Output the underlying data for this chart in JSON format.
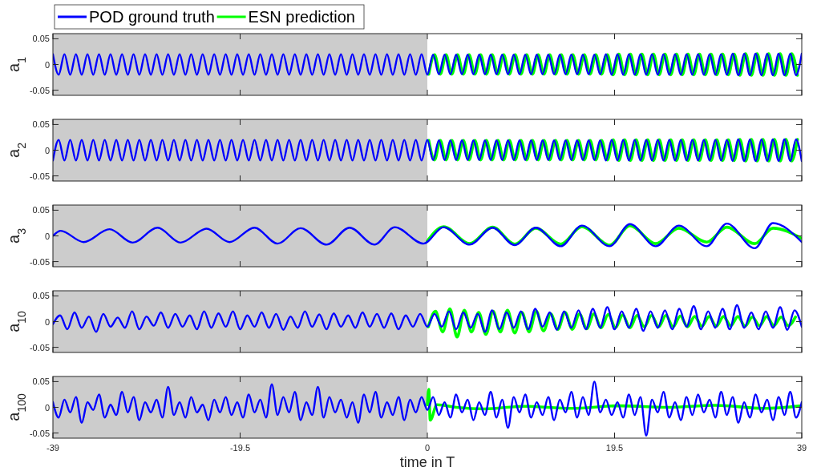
{
  "chart_data": [
    {
      "type": "line",
      "ylabel": "a$_{1}$",
      "xlim": [
        -39,
        39
      ],
      "xticks": [
        -39,
        -19.5,
        0,
        19.5,
        39
      ],
      "ylim": [
        -0.06,
        0.06
      ],
      "yticks": [
        -0.05,
        0,
        0.05
      ],
      "tick_labels": "y",
      "legend": "top left",
      "line_style": "solid",
      "grid": false,
      "bands": [
        {
          "axis": "x",
          "from": -39,
          "to": 0,
          "color": "#cccccc"
        }
      ],
      "x": [
        -39,
        -38.4,
        -37.8,
        -37.2,
        -36.6,
        -36,
        -35.4,
        -34.8,
        -34.2,
        -33.6,
        -33,
        -32.4,
        -31.8,
        -31.2,
        -30.6,
        -30,
        -29.4,
        -28.8,
        -28.2,
        -27.6,
        -27,
        -26.4,
        -25.8,
        -25.2,
        -24.6,
        -24,
        -23.4,
        -22.8,
        -22.2,
        -21.6,
        -21,
        -20.4,
        -19.8,
        -19.2,
        -18.6,
        -18,
        -17.4,
        -16.8,
        -16.2,
        -15.6,
        -15,
        -14.4,
        -13.8,
        -13.2,
        -12.6,
        -12,
        -11.4,
        -10.8,
        -10.2,
        -9.6,
        -9,
        -8.4,
        -7.8,
        -7.2,
        -6.6,
        -6,
        -5.4,
        -4.8,
        -4.2,
        -3.6,
        -3,
        -2.4,
        -1.8,
        -1.2,
        -0.6,
        0,
        0.6,
        1.2,
        1.8,
        2.4,
        3,
        3.6,
        4.2,
        4.8,
        5.4,
        6,
        6.6,
        7.2,
        7.8,
        8.4,
        9,
        9.6,
        10.2,
        10.8,
        11.4,
        12,
        12.6,
        13.2,
        13.8,
        14.4,
        15,
        15.6,
        16.2,
        16.8,
        17.4,
        18,
        18.6,
        19.2,
        19.8,
        20.4,
        21,
        21.6,
        22.2,
        22.8,
        23.4,
        24,
        24.6,
        25.2,
        25.8,
        26.4,
        27,
        27.6,
        28.2,
        28.8,
        29.4,
        30,
        30.6,
        31.2,
        31.8,
        32.4,
        33,
        33.6,
        34.2,
        34.8,
        35.4,
        36,
        36.6,
        37.2,
        37.8,
        38.4,
        39
      ],
      "series": [
        {
          "name": "POD ground truth",
          "color": "#0000ff",
          "values": [
            0.02,
            -0.02,
            0.02,
            -0.02,
            0.02,
            -0.02,
            0.02,
            -0.02,
            0.02,
            -0.02,
            0.02,
            -0.02,
            0.02,
            -0.02,
            0.02,
            -0.02,
            0.02,
            -0.02,
            0.02,
            -0.02,
            0.02,
            -0.02,
            0.02,
            -0.02,
            0.02,
            -0.02,
            0.02,
            -0.02,
            0.02,
            -0.02,
            0.02,
            -0.02,
            0.02,
            -0.02,
            0.02,
            -0.02,
            0.02,
            -0.02,
            0.02,
            -0.02,
            0.02,
            -0.02,
            0.02,
            -0.02,
            0.02,
            -0.02,
            0.02,
            -0.02,
            0.02,
            -0.02,
            0.02,
            -0.02,
            0.02,
            -0.02,
            0.02,
            -0.02,
            0.02,
            -0.02,
            0.02,
            -0.02,
            0.02,
            -0.02,
            0.02,
            -0.02,
            0.02,
            -0.02,
            0.019,
            -0.019,
            0.019,
            -0.019,
            0.019,
            -0.019,
            0.019,
            -0.019,
            0.019,
            -0.019,
            0.019,
            -0.019,
            0.019,
            -0.019,
            0.019,
            -0.019,
            0.019,
            -0.019,
            0.019,
            -0.019,
            0.019,
            -0.019,
            0.019,
            -0.019,
            0.019,
            -0.019,
            0.019,
            -0.019,
            0.019,
            -0.019,
            0.02,
            -0.02,
            0.02,
            -0.02,
            0.02,
            -0.02,
            0.02,
            -0.02,
            0.02,
            -0.02,
            0.02,
            -0.02,
            0.02,
            -0.02,
            0.02,
            -0.02,
            0.02,
            -0.02,
            0.02,
            -0.02,
            0.02,
            -0.02,
            0.021,
            -0.021,
            0.021,
            -0.021,
            0.021,
            -0.021,
            0.021,
            -0.021,
            0.021,
            -0.021,
            0.021,
            -0.021,
            0.021
          ]
        },
        {
          "name": "ESN prediction",
          "color": "#00ff00",
          "x": [
            0.15,
            0.75,
            1.35,
            1.95,
            2.55,
            3.15,
            3.75,
            4.35,
            4.95,
            5.55,
            6.15,
            6.75,
            7.35,
            7.95,
            8.55,
            9.15,
            9.75,
            10.35,
            10.95,
            11.55,
            12.15,
            12.75,
            13.35,
            13.95,
            14.55,
            15.15,
            15.75,
            16.35,
            16.95,
            17.55,
            18.15,
            18.75,
            19.35,
            19.95,
            20.55,
            21.15,
            21.75,
            22.35,
            22.95,
            23.55,
            24.15,
            24.75,
            25.35,
            25.95,
            26.55,
            27.15,
            27.75,
            28.35,
            28.95,
            29.55,
            30.15,
            30.75,
            31.35,
            31.95,
            32.55,
            33.15,
            33.75,
            34.35,
            34.95,
            35.55,
            36.15,
            36.75,
            37.35,
            37.95,
            38.55
          ],
          "values": [
            -0.019,
            0.019,
            -0.019,
            0.019,
            -0.019,
            0.019,
            -0.019,
            0.019,
            -0.019,
            0.019,
            -0.019,
            0.019,
            -0.019,
            0.019,
            -0.019,
            0.019,
            -0.019,
            0.019,
            -0.019,
            0.019,
            -0.019,
            0.019,
            -0.019,
            0.019,
            -0.019,
            0.019,
            -0.019,
            0.019,
            -0.019,
            0.019,
            -0.019,
            0.019,
            -0.02,
            0.02,
            -0.02,
            0.02,
            -0.02,
            0.02,
            -0.02,
            0.02,
            -0.02,
            0.02,
            -0.02,
            0.02,
            -0.02,
            0.02,
            -0.02,
            0.02,
            -0.02,
            0.02,
            -0.02,
            0.02,
            -0.02,
            0.02,
            -0.021,
            0.021,
            -0.021,
            0.021,
            -0.021,
            0.021,
            -0.021,
            0.021,
            -0.021,
            0.021,
            -0.021
          ]
        }
      ]
    },
    {
      "type": "line",
      "ylabel": "a$_{2}$",
      "xlim": [
        -39,
        39
      ],
      "xticks": [
        -39,
        -19.5,
        0,
        19.5,
        39
      ],
      "ylim": [
        -0.06,
        0.06
      ],
      "yticks": [
        -0.05,
        0,
        0.05
      ],
      "tick_labels": "y",
      "line_style": "solid",
      "grid": false,
      "bands": [
        {
          "axis": "x",
          "from": -39,
          "to": 0,
          "color": "#cccccc"
        }
      ],
      "x": [
        -39,
        -38.4,
        -37.8,
        -37.2,
        -36.6,
        -36,
        -35.4,
        -34.8,
        -34.2,
        -33.6,
        -33,
        -32.4,
        -31.8,
        -31.2,
        -30.6,
        -30,
        -29.4,
        -28.8,
        -28.2,
        -27.6,
        -27,
        -26.4,
        -25.8,
        -25.2,
        -24.6,
        -24,
        -23.4,
        -22.8,
        -22.2,
        -21.6,
        -21,
        -20.4,
        -19.8,
        -19.2,
        -18.6,
        -18,
        -17.4,
        -16.8,
        -16.2,
        -15.6,
        -15,
        -14.4,
        -13.8,
        -13.2,
        -12.6,
        -12,
        -11.4,
        -10.8,
        -10.2,
        -9.6,
        -9,
        -8.4,
        -7.8,
        -7.2,
        -6.6,
        -6,
        -5.4,
        -4.8,
        -4.2,
        -3.6,
        -3,
        -2.4,
        -1.8,
        -1.2,
        -0.6,
        0,
        0.6,
        1.2,
        1.8,
        2.4,
        3,
        3.6,
        4.2,
        4.8,
        5.4,
        6,
        6.6,
        7.2,
        7.8,
        8.4,
        9,
        9.6,
        10.2,
        10.8,
        11.4,
        12,
        12.6,
        13.2,
        13.8,
        14.4,
        15,
        15.6,
        16.2,
        16.8,
        17.4,
        18,
        18.6,
        19.2,
        19.8,
        20.4,
        21,
        21.6,
        22.2,
        22.8,
        23.4,
        24,
        24.6,
        25.2,
        25.8,
        26.4,
        27,
        27.6,
        28.2,
        28.8,
        29.4,
        30,
        30.6,
        31.2,
        31.8,
        32.4,
        33,
        33.6,
        34.2,
        34.8,
        35.4,
        36,
        36.6,
        37.2,
        37.8,
        38.4,
        39
      ],
      "series": [
        {
          "color": "#0000ff",
          "values": [
            -0.02,
            0.02,
            -0.02,
            0.02,
            -0.02,
            0.02,
            -0.02,
            0.02,
            -0.02,
            0.02,
            -0.02,
            0.02,
            -0.02,
            0.02,
            -0.02,
            0.02,
            -0.02,
            0.02,
            -0.02,
            0.02,
            -0.02,
            0.02,
            -0.02,
            0.02,
            -0.02,
            0.02,
            -0.02,
            0.02,
            -0.02,
            0.02,
            -0.02,
            0.02,
            -0.02,
            0.02,
            -0.02,
            0.02,
            -0.02,
            0.02,
            -0.02,
            0.02,
            -0.02,
            0.02,
            -0.02,
            0.02,
            -0.02,
            0.02,
            -0.02,
            0.02,
            -0.02,
            0.02,
            -0.02,
            0.02,
            -0.02,
            0.02,
            -0.02,
            0.02,
            -0.02,
            0.02,
            -0.02,
            0.02,
            -0.02,
            0.02,
            -0.02,
            0.02,
            -0.02,
            0.02,
            -0.019,
            0.019,
            -0.019,
            0.019,
            -0.019,
            0.019,
            -0.019,
            0.019,
            -0.019,
            0.019,
            -0.019,
            0.019,
            -0.019,
            0.019,
            -0.019,
            0.019,
            -0.019,
            0.019,
            -0.019,
            0.019,
            -0.019,
            0.019,
            -0.019,
            0.019,
            -0.019,
            0.019,
            -0.019,
            0.019,
            -0.019,
            0.019,
            -0.02,
            0.02,
            -0.02,
            0.02,
            -0.02,
            0.02,
            -0.02,
            0.02,
            -0.02,
            0.02,
            -0.02,
            0.02,
            -0.02,
            0.02,
            -0.02,
            0.02,
            -0.02,
            0.02,
            -0.02,
            0.02,
            -0.02,
            0.02,
            -0.021,
            0.021,
            -0.021,
            0.021,
            -0.021,
            0.021,
            -0.021,
            0.021,
            -0.021,
            0.021,
            -0.021,
            0.021,
            -0.021
          ]
        },
        {
          "color": "#00ff00",
          "x": [
            0.15,
            0.75,
            1.35,
            1.95,
            2.55,
            3.15,
            3.75,
            4.35,
            4.95,
            5.55,
            6.15,
            6.75,
            7.35,
            7.95,
            8.55,
            9.15,
            9.75,
            10.35,
            10.95,
            11.55,
            12.15,
            12.75,
            13.35,
            13.95,
            14.55,
            15.15,
            15.75,
            16.35,
            16.95,
            17.55,
            18.15,
            18.75,
            19.35,
            19.95,
            20.55,
            21.15,
            21.75,
            22.35,
            22.95,
            23.55,
            24.15,
            24.75,
            25.35,
            25.95,
            26.55,
            27.15,
            27.75,
            28.35,
            28.95,
            29.55,
            30.15,
            30.75,
            31.35,
            31.95,
            32.55,
            33.15,
            33.75,
            34.35,
            34.95,
            35.55,
            36.15,
            36.75,
            37.35,
            37.95,
            38.55
          ],
          "values": [
            0.019,
            -0.019,
            0.019,
            -0.019,
            0.019,
            -0.019,
            0.019,
            -0.019,
            0.019,
            -0.019,
            0.019,
            -0.019,
            0.019,
            -0.019,
            0.019,
            -0.019,
            0.019,
            -0.019,
            0.019,
            -0.019,
            0.019,
            -0.019,
            0.019,
            -0.019,
            0.019,
            -0.019,
            0.019,
            -0.019,
            0.019,
            -0.019,
            0.019,
            -0.019,
            0.02,
            -0.02,
            0.02,
            -0.02,
            0.02,
            -0.02,
            0.02,
            -0.02,
            0.02,
            -0.02,
            0.02,
            -0.02,
            0.02,
            -0.02,
            0.02,
            -0.02,
            0.02,
            -0.02,
            0.02,
            -0.02,
            0.02,
            -0.02,
            0.021,
            -0.021,
            0.021,
            -0.021,
            0.021,
            -0.021,
            0.021,
            -0.021,
            0.021,
            -0.021,
            0.021
          ]
        }
      ]
    },
    {
      "type": "line",
      "ylabel": "a$_{3}$",
      "xlim": [
        -39,
        39
      ],
      "xticks": [
        -39,
        -19.5,
        0,
        19.5,
        39
      ],
      "ylim": [
        -0.06,
        0.06
      ],
      "yticks": [
        -0.05,
        0,
        0.05
      ],
      "tick_labels": "y",
      "line_style": "solid",
      "grid": false,
      "bands": [
        {
          "axis": "x",
          "from": -39,
          "to": 0,
          "color": "#cccccc"
        }
      ],
      "x": [
        -39,
        -38.2,
        -35.8,
        -33.1,
        -30.7,
        -28.1,
        -25.7,
        -23,
        -20.6,
        -18,
        -15.6,
        -13.2,
        -10.5,
        -8.1,
        -5.5,
        -3.4,
        -0.4,
        1.7,
        4.4,
        6.8,
        9.1,
        11.3,
        13.9,
        16.1,
        19,
        21.1,
        23.8,
        26.2,
        29.1,
        31.2,
        34.1,
        36,
        39
      ],
      "series": [
        {
          "color": "#0000ff",
          "values": [
            0,
            0.01,
            -0.012,
            0.013,
            -0.013,
            0.016,
            -0.013,
            0.014,
            -0.012,
            0.016,
            -0.015,
            0.015,
            -0.017,
            0.016,
            -0.017,
            0.017,
            -0.015,
            0.017,
            -0.017,
            0.016,
            -0.018,
            0.016,
            -0.02,
            0.02,
            -0.02,
            0.023,
            -0.02,
            0.02,
            -0.02,
            0.024,
            -0.024,
            0.025,
            -0.012
          ]
        },
        {
          "color": "#00ff00",
          "x": [
            0,
            1.7,
            4.4,
            6.8,
            9.1,
            11.3,
            13.9,
            16.1,
            19,
            21.1,
            23.8,
            26.2,
            29.1,
            31.2,
            34.1,
            36,
            39
          ],
          "values": [
            -0.01,
            0.018,
            -0.015,
            0.017,
            -0.016,
            0.015,
            -0.016,
            0.018,
            -0.018,
            0.02,
            -0.015,
            0.015,
            -0.012,
            0.017,
            -0.015,
            0.015,
            -0.005
          ]
        }
      ]
    },
    {
      "type": "line",
      "ylabel": "a$_{10}$",
      "xlim": [
        -39,
        39
      ],
      "xticks": [
        -39,
        -19.5,
        0,
        19.5,
        39
      ],
      "ylim": [
        -0.06,
        0.06
      ],
      "yticks": [
        -0.05,
        0,
        0.05
      ],
      "tick_labels": "y",
      "line_style": "solid",
      "grid": false,
      "bands": [
        {
          "axis": "x",
          "from": -39,
          "to": 0,
          "color": "#cccccc"
        }
      ],
      "x": [
        -39,
        -38.25,
        -37.5,
        -36.75,
        -36,
        -35.25,
        -34.5,
        -33.75,
        -33,
        -32.25,
        -31.5,
        -30.75,
        -30,
        -29.25,
        -28.5,
        -27.75,
        -27,
        -26.25,
        -25.5,
        -24.75,
        -24,
        -23.25,
        -22.5,
        -21.75,
        -21,
        -20.25,
        -19.5,
        -18.75,
        -18,
        -17.25,
        -16.5,
        -15.75,
        -15,
        -14.25,
        -13.5,
        -12.75,
        -12,
        -11.25,
        -10.5,
        -9.75,
        -9,
        -8.25,
        -7.5,
        -6.75,
        -6,
        -5.25,
        -4.5,
        -3.75,
        -3,
        -2.25,
        -1.5,
        -0.75,
        0,
        0.75,
        1.5,
        2.25,
        3,
        3.75,
        4.5,
        5.25,
        6,
        6.75,
        7.5,
        8.25,
        9,
        9.75,
        10.5,
        11.25,
        12,
        12.75,
        13.5,
        14.25,
        15,
        15.75,
        16.5,
        17.25,
        18,
        18.75,
        19.5,
        20.25,
        21,
        21.75,
        22.5,
        23.25,
        24,
        24.75,
        25.5,
        26.25,
        27,
        27.75,
        28.5,
        29.25,
        30,
        30.75,
        31.5,
        32.25,
        33,
        33.75,
        34.5,
        35.25,
        36,
        36.75,
        37.5,
        38.25,
        39
      ],
      "series": [
        {
          "color": "#0000ff",
          "values": [
            -0.005,
            0.012,
            -0.015,
            0.018,
            -0.012,
            0.01,
            -0.02,
            0.015,
            -0.01,
            0.008,
            -0.012,
            0.02,
            -0.015,
            0.01,
            -0.008,
            0.018,
            -0.012,
            0.015,
            -0.01,
            0.012,
            -0.015,
            0.02,
            -0.012,
            0.016,
            -0.01,
            0.02,
            -0.015,
            0.012,
            -0.01,
            0.018,
            -0.012,
            0.015,
            -0.016,
            0.01,
            -0.012,
            0.02,
            -0.01,
            0.014,
            -0.015,
            0.016,
            -0.01,
            0.012,
            -0.012,
            0.018,
            -0.01,
            0.015,
            -0.012,
            0.016,
            -0.015,
            0.012,
            -0.01,
            0.015,
            -0.01,
            0.015,
            -0.01,
            0.02,
            -0.015,
            0.018,
            -0.012,
            0.015,
            -0.02,
            0.022,
            -0.015,
            0.018,
            -0.012,
            0.02,
            -0.015,
            0.025,
            -0.01,
            0.018,
            -0.016,
            0.02,
            -0.012,
            0.022,
            -0.015,
            0.025,
            -0.012,
            0.028,
            -0.015,
            0.02,
            -0.012,
            0.025,
            -0.018,
            0.02,
            -0.012,
            0.022,
            -0.015,
            0.025,
            -0.01,
            0.03,
            -0.015,
            0.02,
            -0.012,
            0.025,
            -0.015,
            0.032,
            -0.012,
            0.018,
            -0.015,
            0.02,
            -0.012,
            0.028,
            -0.016,
            0.022,
            -0.01
          ]
        },
        {
          "color": "#00ff00",
          "x": [
            0.1,
            0.85,
            1.6,
            2.35,
            3.1,
            3.85,
            4.6,
            5.35,
            6.1,
            6.85,
            7.6,
            8.35,
            9.1,
            9.85,
            10.6,
            11.35,
            12.1,
            12.85,
            13.6,
            14.35,
            15.1,
            15.85,
            16.6,
            17.35,
            18.1,
            18.85,
            19.6,
            20.35,
            21.1,
            21.85,
            22.6,
            23.35,
            24.1,
            24.85,
            25.6,
            26.35,
            27.1,
            27.85,
            28.6,
            29.35,
            30.1,
            30.85,
            31.6,
            32.35,
            33.1,
            33.85,
            34.6,
            35.35,
            36.1,
            36.85,
            37.6,
            38.35
          ],
          "values": [
            -0.01,
            0.02,
            -0.02,
            0.025,
            -0.03,
            0.022,
            -0.02,
            0.018,
            -0.025,
            0.02,
            -0.02,
            0.022,
            -0.022,
            0.018,
            -0.02,
            0.02,
            -0.018,
            0.015,
            -0.015,
            0.018,
            -0.015,
            0.015,
            -0.014,
            0.015,
            -0.012,
            0.014,
            -0.012,
            0.013,
            -0.012,
            0.012,
            -0.01,
            0.012,
            -0.01,
            0.012,
            -0.01,
            0.011,
            -0.01,
            0.01,
            -0.009,
            0.01,
            -0.009,
            0.01,
            -0.008,
            0.01,
            -0.009,
            0.009,
            -0.008,
            0.01,
            -0.008,
            0.009,
            -0.008,
            0.009
          ]
        }
      ]
    },
    {
      "type": "line",
      "ylabel": "a$_{100}$",
      "xlabel": "time in T",
      "xlim": [
        -39,
        39
      ],
      "xticks": [
        -39,
        -19.5,
        0,
        19.5,
        39
      ],
      "ylim": [
        -0.06,
        0.06
      ],
      "yticks": [
        -0.05,
        0,
        0.05
      ],
      "line_style": "solid",
      "grid": false,
      "bands": [
        {
          "axis": "x",
          "from": -39,
          "to": 0,
          "color": "#cccccc"
        }
      ],
      "x": [
        -39,
        -38.4,
        -37.8,
        -37.2,
        -36.6,
        -36,
        -35.4,
        -34.8,
        -34.2,
        -33.6,
        -33,
        -32.4,
        -31.8,
        -31.2,
        -30.6,
        -30,
        -29.4,
        -28.8,
        -28.2,
        -27.6,
        -27,
        -26.4,
        -25.8,
        -25.2,
        -24.6,
        -24,
        -23.4,
        -22.8,
        -22.2,
        -21.6,
        -21,
        -20.4,
        -19.8,
        -19.2,
        -18.6,
        -18,
        -17.4,
        -16.8,
        -16.2,
        -15.6,
        -15,
        -14.4,
        -13.8,
        -13.2,
        -12.6,
        -12,
        -11.4,
        -10.8,
        -10.2,
        -9.6,
        -9,
        -8.4,
        -7.8,
        -7.2,
        -6.6,
        -6,
        -5.4,
        -4.8,
        -4.2,
        -3.6,
        -3,
        -2.4,
        -1.8,
        -1.2,
        -0.6,
        0,
        0.6,
        1.2,
        1.8,
        2.4,
        3,
        3.6,
        4.2,
        4.8,
        5.4,
        6,
        6.6,
        7.2,
        7.8,
        8.4,
        9,
        9.6,
        10.2,
        10.8,
        11.4,
        12,
        12.6,
        13.2,
        13.8,
        14.4,
        15,
        15.6,
        16.2,
        16.8,
        17.4,
        18,
        18.6,
        19.2,
        19.8,
        20.4,
        21,
        21.6,
        22.2,
        22.8,
        23.4,
        24,
        24.6,
        25.2,
        25.8,
        26.4,
        27,
        27.6,
        28.2,
        28.8,
        29.4,
        30,
        30.6,
        31.2,
        31.8,
        32.4,
        33,
        33.6,
        34.2,
        34.8,
        35.4,
        36,
        36.6,
        37.2,
        37.8,
        38.4,
        39
      ],
      "series": [
        {
          "color": "#0000ff",
          "values": [
            0.01,
            -0.02,
            0.015,
            -0.01,
            0.02,
            -0.03,
            0.01,
            -0.005,
            0.025,
            -0.02,
            0.005,
            -0.015,
            0.03,
            -0.01,
            0.02,
            -0.025,
            0.01,
            -0.01,
            0.015,
            -0.02,
            0.04,
            -0.015,
            0.01,
            -0.02,
            0.02,
            -0.01,
            0.005,
            -0.025,
            0.015,
            -0.01,
            0.02,
            -0.015,
            0.01,
            -0.02,
            0.025,
            -0.01,
            0.015,
            -0.02,
            0.045,
            -0.015,
            0.02,
            -0.01,
            0.03,
            -0.025,
            0.01,
            -0.015,
            0.04,
            -0.02,
            0.02,
            -0.01,
            0.015,
            -0.02,
            0.01,
            -0.03,
            0.025,
            -0.01,
            0.03,
            -0.02,
            0.01,
            -0.015,
            0.02,
            -0.025,
            0.015,
            -0.01,
            0.02,
            -0.005,
            0.02,
            -0.015,
            0.01,
            -0.02,
            0.025,
            -0.01,
            0.015,
            -0.025,
            0.01,
            -0.015,
            0.03,
            -0.02,
            0.015,
            -0.04,
            0.02,
            -0.01,
            0.025,
            -0.02,
            0.01,
            -0.015,
            0.02,
            -0.025,
            0.015,
            -0.01,
            0.03,
            -0.02,
            0.02,
            -0.015,
            0.05,
            -0.01,
            0.015,
            -0.015,
            0.01,
            -0.02,
            0.025,
            -0.015,
            0.02,
            -0.055,
            0.015,
            -0.01,
            0.03,
            -0.02,
            0.01,
            -0.025,
            0.02,
            -0.015,
            0.025,
            -0.01,
            0.015,
            -0.02,
            0.03,
            -0.015,
            0.02,
            -0.03,
            0.01,
            -0.02,
            0.025,
            -0.01,
            0.015,
            -0.025,
            0.02,
            -0.015,
            0.03,
            -0.02,
            0.01
          ]
        },
        {
          "color": "#00ff00",
          "x": [
            0,
            0.15,
            0.3,
            1,
            3,
            6,
            10,
            15,
            20,
            25,
            30,
            35,
            39
          ],
          "values": [
            0.005,
            0.035,
            -0.025,
            0.005,
            0,
            -0.003,
            0.002,
            -0.002,
            0.003,
            0,
            0.004,
            -0.002,
            0.003
          ]
        }
      ]
    }
  ]
}
